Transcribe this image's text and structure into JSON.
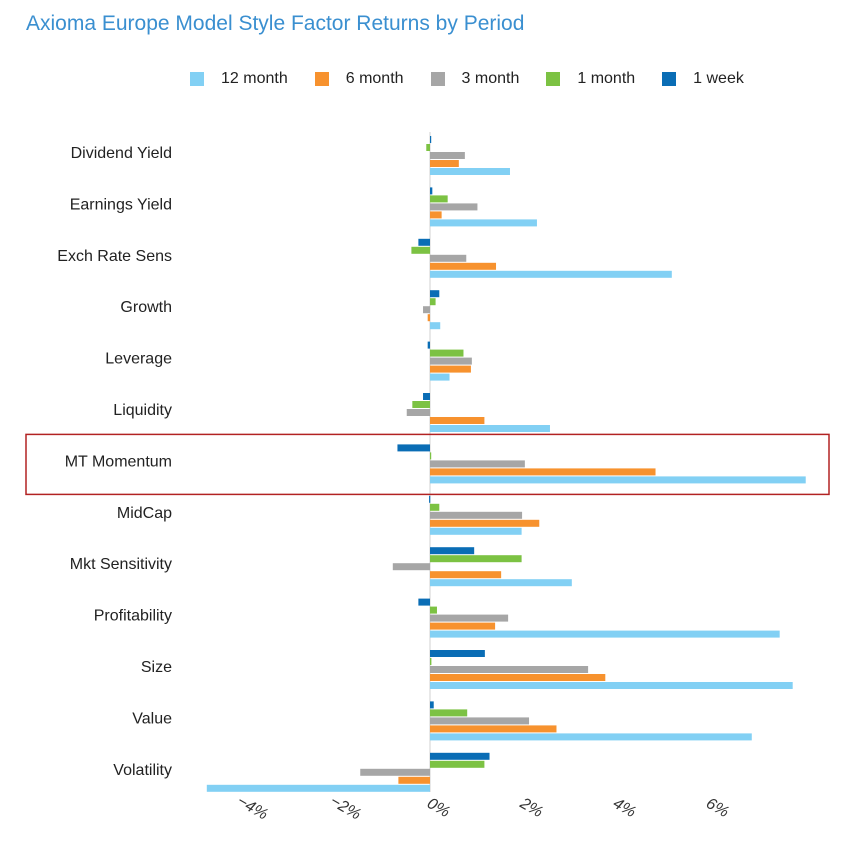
{
  "chart_data": {
    "type": "bar",
    "orientation": "horizontal",
    "title": "Axioma Europe Model Style Factor Returns by Period",
    "categories": [
      "Dividend Yield",
      "Earnings Yield",
      "Exch Rate Sens",
      "Growth",
      "Leverage",
      "Liquidity",
      "MT Momentum",
      "MidCap",
      "Mkt Sensitivity",
      "Profitability",
      "Size",
      "Value",
      "Volatility"
    ],
    "series": [
      {
        "name": "1 week",
        "color": "#0a6db5",
        "values": [
          0.0,
          0.05,
          -0.25,
          0.2,
          -0.05,
          -0.15,
          -0.7,
          -0.02,
          0.95,
          -0.25,
          1.18,
          0.08,
          1.28
        ]
      },
      {
        "name": "1 month",
        "color": "#7cc243",
        "values": [
          -0.08,
          0.38,
          -0.4,
          0.12,
          0.72,
          -0.38,
          0.0,
          0.2,
          1.97,
          0.15,
          0.03,
          0.8,
          1.17
        ]
      },
      {
        "name": "3 month",
        "color": "#a6a6a6",
        "values": [
          0.75,
          1.02,
          0.78,
          -0.15,
          0.9,
          -0.5,
          2.04,
          1.98,
          -0.8,
          1.68,
          3.4,
          2.13,
          -1.5
        ]
      },
      {
        "name": "6 month",
        "color": "#f7922e",
        "values": [
          0.62,
          0.25,
          1.42,
          -0.05,
          0.88,
          1.17,
          4.85,
          2.35,
          1.53,
          1.4,
          3.77,
          2.72,
          -0.68
        ]
      },
      {
        "name": "12 month",
        "color": "#82d0f4",
        "values": [
          1.72,
          2.3,
          5.2,
          0.22,
          0.42,
          2.58,
          8.08,
          1.97,
          3.05,
          7.52,
          7.8,
          6.92,
          -4.8
        ]
      }
    ],
    "legend_order": [
      "12 month",
      "6 month",
      "3 month",
      "1 month",
      "1 week"
    ],
    "x_ticks": [
      "−4%",
      "−2%",
      "0%",
      "2%",
      "4%",
      "6%"
    ],
    "x_tick_values": [
      -4,
      -2,
      0,
      2,
      4,
      6
    ],
    "xlim": [
      -5,
      8.3
    ],
    "highlighted_category": "MT Momentum",
    "highlight_color": "#b22222",
    "grid": false,
    "legend_position": "top"
  }
}
